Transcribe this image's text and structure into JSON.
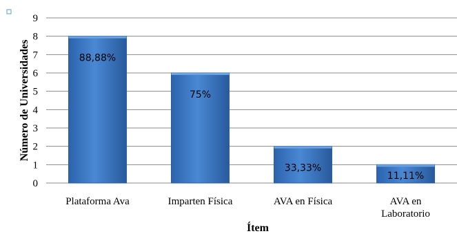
{
  "chart_data": {
    "type": "bar",
    "categories": [
      "Plataforma Ava",
      "Imparten Física",
      "AVA en Física",
      "AVA en\nLaboratorio"
    ],
    "values": [
      8,
      6,
      2,
      1
    ],
    "data_labels": [
      "88,88%",
      "75%",
      "33,33%",
      "11,11%"
    ],
    "title": "",
    "xlabel": "Ítem",
    "ylabel": "Número de Universidades",
    "ylim": [
      0,
      9
    ],
    "yticks": [
      0,
      1,
      2,
      3,
      4,
      5,
      6,
      7,
      8,
      9
    ],
    "grid": true,
    "bar_color": "#3a78c4",
    "bar_edge_color": "#2a5d9e",
    "grid_color": "#8a8a8a",
    "legend_marker_color": "#5b9bd5"
  }
}
